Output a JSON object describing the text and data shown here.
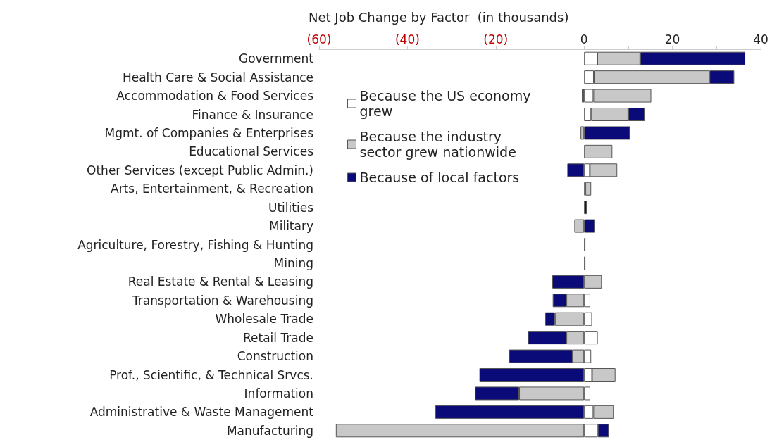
{
  "chart_data": {
    "type": "bar",
    "orientation": "horizontal",
    "stacked": true,
    "title": "Net Job Change by Factor  (in thousands)",
    "categories": [
      "Government",
      "Health Care & Social Assistance",
      "Accommodation & Food Services",
      "Finance & Insurance",
      "Mgmt. of Companies & Enterprises",
      "Educational Services",
      "Other Services (except Public Admin.)",
      "Arts, Entertainment, & Recreation",
      "Utilities",
      "Military",
      "Agriculture, Forestry, Fishing & Hunting",
      "Mining",
      "Real Estate & Rental & Leasing",
      "Transportation & Warehousing",
      "Wholesale Trade",
      "Retail Trade",
      "Construction",
      "Prof., Scientific, & Technical Srvcs.",
      "Information",
      "Administrative & Waste Management",
      "Manufacturing"
    ],
    "series": [
      {
        "name": "Because the US economy grew",
        "color": "#ffffff",
        "values": [
          3.0,
          2.2,
          2.1,
          1.6,
          null,
          null,
          1.3,
          0.3,
          null,
          null,
          null,
          null,
          null,
          1.4,
          1.8,
          3.1,
          1.6,
          1.8,
          1.4,
          2.1,
          3.1
        ]
      },
      {
        "name": "Because the industry sector grew nationwide",
        "color": "#c8c8c8",
        "values": [
          9.7,
          26.2,
          13.1,
          8.4,
          -0.8,
          6.4,
          6.2,
          1.3,
          null,
          -2.2,
          null,
          null,
          4.0,
          -4.0,
          -6.6,
          -4.0,
          -2.6,
          5.3,
          -14.7,
          4.6,
          -56.2
        ]
      },
      {
        "name": "Because of local factors",
        "color": "#0a0a78",
        "values": [
          23.8,
          5.6,
          -0.5,
          3.7,
          10.4,
          null,
          -3.8,
          null,
          0.6,
          2.4,
          0.3,
          0.3,
          -7.2,
          -3.1,
          -2.2,
          -8.7,
          -14.4,
          -23.7,
          -10.0,
          -33.7,
          2.5
        ]
      }
    ],
    "xlim": [
      -60,
      40
    ],
    "xticks": [
      {
        "value": -60,
        "label": "(60)"
      },
      {
        "value": -50,
        "label": null
      },
      {
        "value": -40,
        "label": "(40)"
      },
      {
        "value": -30,
        "label": null
      },
      {
        "value": -20,
        "label": "(20)"
      },
      {
        "value": -10,
        "label": null
      },
      0,
      {
        "value": 10,
        "label": null
      },
      20,
      {
        "value": 30,
        "label": null
      },
      40
    ],
    "legend": "top left",
    "grid": false
  }
}
